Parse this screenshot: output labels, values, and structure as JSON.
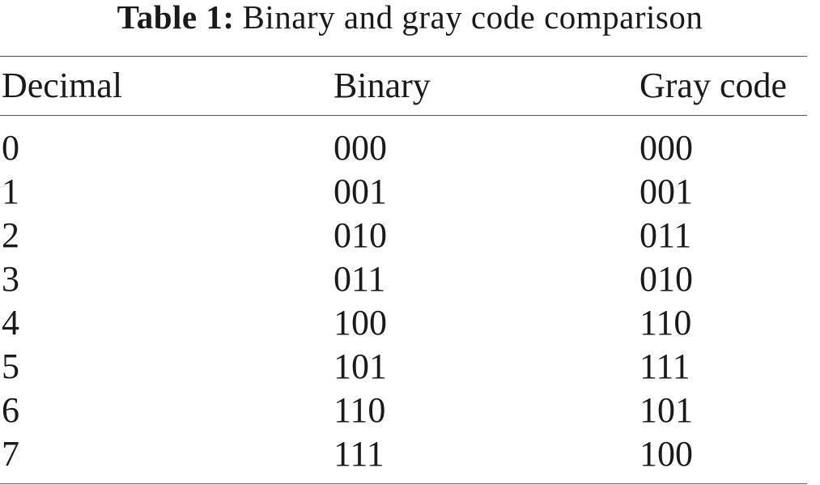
{
  "table": {
    "caption_label": "Table 1:",
    "caption_text": "Binary and gray code comparison",
    "headers": [
      "Decimal",
      "Binary",
      "Gray code"
    ],
    "rows": [
      [
        "0",
        "000",
        "000"
      ],
      [
        "1",
        "001",
        "001"
      ],
      [
        "2",
        "010",
        "011"
      ],
      [
        "3",
        "011",
        "010"
      ],
      [
        "4",
        "100",
        "110"
      ],
      [
        "5",
        "101",
        "111"
      ],
      [
        "6",
        "110",
        "101"
      ],
      [
        "7",
        "111",
        "100"
      ]
    ]
  }
}
